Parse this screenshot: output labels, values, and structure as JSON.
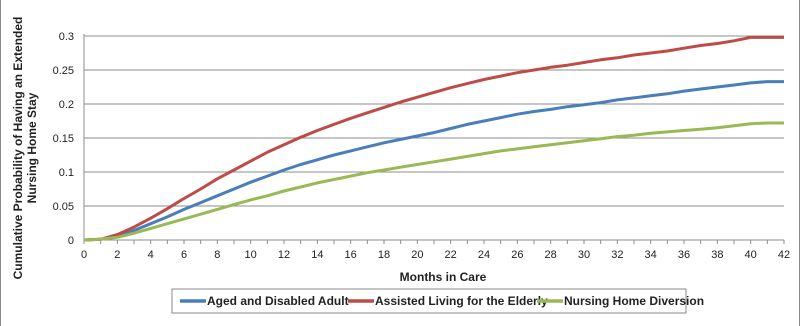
{
  "chart_data": {
    "type": "line",
    "title": "",
    "xlabel": "Months in Care",
    "ylabel": "Cumulative Probability of Having an Extended Nursing Home Stay",
    "xlim": [
      0,
      42
    ],
    "ylim": [
      0,
      0.3
    ],
    "xticks": [
      0,
      2,
      4,
      6,
      8,
      10,
      12,
      14,
      16,
      18,
      20,
      22,
      24,
      26,
      28,
      30,
      32,
      34,
      36,
      38,
      40,
      42
    ],
    "yticks": [
      0,
      0.05,
      0.1,
      0.15,
      0.2,
      0.25,
      0.3
    ],
    "ytick_labels": [
      "0",
      "0.05",
      "0.1",
      "0.15",
      "0.2",
      "0.25",
      "0.3"
    ],
    "grid": true,
    "legend_position": "bottom",
    "x": [
      0,
      1,
      2,
      3,
      4,
      5,
      6,
      7,
      8,
      9,
      10,
      11,
      12,
      13,
      14,
      15,
      16,
      17,
      18,
      19,
      20,
      21,
      22,
      23,
      24,
      25,
      26,
      27,
      28,
      29,
      30,
      31,
      32,
      33,
      34,
      35,
      36,
      37,
      38,
      39,
      40,
      41,
      42
    ],
    "series": [
      {
        "name": "Aged and Disabled Adult",
        "color": "#4a7ebb",
        "values": [
          0,
          0.001,
          0.006,
          0.014,
          0.024,
          0.034,
          0.045,
          0.055,
          0.065,
          0.075,
          0.085,
          0.094,
          0.103,
          0.111,
          0.118,
          0.125,
          0.131,
          0.137,
          0.143,
          0.148,
          0.153,
          0.158,
          0.164,
          0.17,
          0.175,
          0.18,
          0.185,
          0.189,
          0.192,
          0.196,
          0.199,
          0.202,
          0.206,
          0.209,
          0.212,
          0.215,
          0.219,
          0.222,
          0.225,
          0.228,
          0.231,
          0.233,
          0.233
        ]
      },
      {
        "name": "Assisted Living for the Elderly",
        "color": "#be4b48",
        "values": [
          0,
          0.001,
          0.008,
          0.019,
          0.032,
          0.046,
          0.061,
          0.075,
          0.09,
          0.103,
          0.116,
          0.129,
          0.14,
          0.151,
          0.161,
          0.17,
          0.179,
          0.187,
          0.195,
          0.203,
          0.21,
          0.217,
          0.224,
          0.23,
          0.236,
          0.241,
          0.246,
          0.25,
          0.254,
          0.257,
          0.261,
          0.265,
          0.268,
          0.272,
          0.275,
          0.278,
          0.282,
          0.286,
          0.289,
          0.293,
          0.298,
          0.298,
          0.298
        ]
      },
      {
        "name": "Nursing Home Diversion",
        "color": "#98b954",
        "values": [
          0,
          0.001,
          0.004,
          0.01,
          0.017,
          0.024,
          0.031,
          0.038,
          0.045,
          0.052,
          0.059,
          0.065,
          0.072,
          0.078,
          0.084,
          0.089,
          0.094,
          0.099,
          0.103,
          0.107,
          0.111,
          0.115,
          0.119,
          0.123,
          0.127,
          0.131,
          0.134,
          0.137,
          0.14,
          0.143,
          0.146,
          0.149,
          0.152,
          0.154,
          0.157,
          0.159,
          0.161,
          0.163,
          0.165,
          0.168,
          0.171,
          0.172,
          0.172
        ]
      }
    ]
  }
}
